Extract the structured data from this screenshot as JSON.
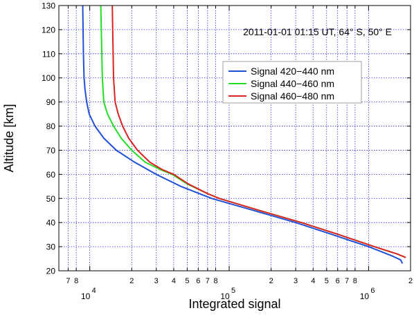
{
  "chart_data": {
    "type": "line",
    "annotation": "2011-01-01 01:15 UT, 64° S, 50° E",
    "xlabel": "Integrated signal",
    "ylabel": "Altitude [km]",
    "x_scale": "log",
    "xlim": [
      6000,
      2000000
    ],
    "ylim": [
      20,
      130
    ],
    "yticks": [
      20,
      30,
      40,
      50,
      60,
      70,
      80,
      90,
      100,
      110,
      120,
      130
    ],
    "ytick_labels": [
      "20",
      "30",
      "40",
      "50",
      "60",
      "70",
      "80",
      "90",
      "100",
      "110",
      "120",
      "130"
    ],
    "x_major_ticks": [
      {
        "value": 10000,
        "base": "10",
        "exp": "4"
      },
      {
        "value": 100000,
        "base": "10",
        "exp": "5"
      },
      {
        "value": 1000000,
        "base": "10",
        "exp": "6"
      }
    ],
    "x_minor_ticks": [
      {
        "value": 7000,
        "label": "7"
      },
      {
        "value": 8000,
        "label": "8"
      },
      {
        "value": 20000,
        "label": "2"
      },
      {
        "value": 30000,
        "label": "3"
      },
      {
        "value": 40000,
        "label": "4"
      },
      {
        "value": 50000,
        "label": "5"
      },
      {
        "value": 60000,
        "label": "6"
      },
      {
        "value": 70000,
        "label": "7"
      },
      {
        "value": 80000,
        "label": "8"
      },
      {
        "value": 200000,
        "label": "2"
      },
      {
        "value": 300000,
        "label": "3"
      },
      {
        "value": 400000,
        "label": "4"
      },
      {
        "value": 500000,
        "label": "5"
      },
      {
        "value": 600000,
        "label": "6"
      },
      {
        "value": 700000,
        "label": "7"
      },
      {
        "value": 800000,
        "label": "8"
      },
      {
        "value": 2000000,
        "label": "2"
      }
    ],
    "grid": true,
    "legend_position": "upper-right",
    "series": [
      {
        "name": "Signal 420−440 nm",
        "color": "#1f4fd6",
        "points": [
          [
            8900,
            130
          ],
          [
            8950,
            120
          ],
          [
            9000,
            110
          ],
          [
            9100,
            100
          ],
          [
            9250,
            95
          ],
          [
            9500,
            90
          ],
          [
            9900,
            85
          ],
          [
            10900,
            80
          ],
          [
            12600,
            75
          ],
          [
            15500,
            70
          ],
          [
            21000,
            65
          ],
          [
            30000,
            60
          ],
          [
            45000,
            55
          ],
          [
            75000,
            50
          ],
          [
            150000,
            45
          ],
          [
            300000,
            40
          ],
          [
            550000,
            35
          ],
          [
            1000000,
            30
          ],
          [
            1500000,
            26
          ],
          [
            1700000,
            24.5
          ],
          [
            1750000,
            23
          ]
        ]
      },
      {
        "name": "Signal 440−460 nm",
        "color": "#22dd22",
        "points": [
          [
            12000,
            130
          ],
          [
            12100,
            120
          ],
          [
            12200,
            110
          ],
          [
            12300,
            100
          ],
          [
            12600,
            90
          ],
          [
            13400,
            85
          ],
          [
            14800,
            80
          ],
          [
            16800,
            75
          ],
          [
            20000,
            70
          ],
          [
            25000,
            65
          ],
          [
            32000,
            62
          ],
          [
            39000,
            60
          ],
          [
            50000,
            56
          ],
          [
            70000,
            52
          ],
          [
            85000,
            50
          ],
          [
            165000,
            45
          ],
          [
            330000,
            40
          ],
          [
            610000,
            35
          ],
          [
            1100000,
            30
          ],
          [
            1600000,
            27
          ],
          [
            1850000,
            25.5
          ]
        ]
      },
      {
        "name": "Signal 460−480 nm",
        "color": "#dd2222",
        "points": [
          [
            14500,
            130
          ],
          [
            14600,
            120
          ],
          [
            14700,
            110
          ],
          [
            14800,
            100
          ],
          [
            15200,
            90
          ],
          [
            16000,
            85
          ],
          [
            17200,
            80
          ],
          [
            19000,
            75
          ],
          [
            22000,
            70
          ],
          [
            27000,
            65
          ],
          [
            33000,
            62
          ],
          [
            40000,
            60
          ],
          [
            51000,
            56
          ],
          [
            70000,
            52
          ],
          [
            85000,
            50
          ],
          [
            165000,
            45
          ],
          [
            330000,
            40
          ],
          [
            610000,
            35
          ],
          [
            1100000,
            30
          ],
          [
            1600000,
            27
          ],
          [
            1850000,
            25.5
          ]
        ]
      }
    ]
  }
}
